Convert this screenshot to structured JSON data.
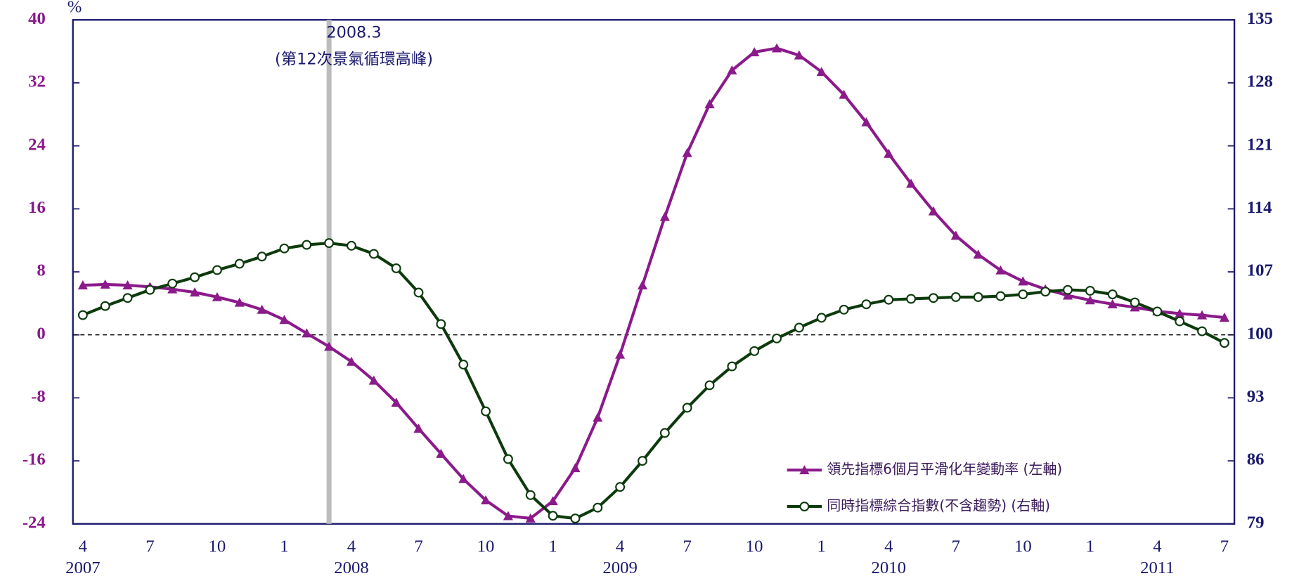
{
  "chart_data": {
    "type": "line",
    "y_label": "%",
    "categories": [
      "4",
      null,
      null,
      "7",
      null,
      null,
      "10",
      null,
      null,
      "1",
      null,
      null,
      "4",
      null,
      null,
      "7",
      null,
      null,
      "10",
      null,
      null,
      "1",
      null,
      null,
      "4",
      null,
      null,
      "7",
      null,
      null,
      "10",
      null,
      null,
      "1",
      null,
      null,
      "4",
      null,
      null,
      "7",
      null,
      null,
      "10",
      null,
      null,
      "1",
      null,
      null,
      "4",
      null,
      null,
      "7"
    ],
    "year_labels": [
      "2007",
      "2008",
      "2009",
      "2010",
      "2011"
    ],
    "ylim": [
      -24,
      40
    ],
    "yticks": [
      -24,
      -16,
      -8,
      0,
      8,
      16,
      24,
      32,
      40
    ],
    "y2lim": [
      79,
      135
    ],
    "y2ticks": [
      79,
      86,
      93,
      100,
      107,
      114,
      121,
      128,
      135
    ],
    "ytick_color": "#8b1a8b",
    "y2tick_color": "#1a1a6e",
    "zero_line": true,
    "legend": "lower right",
    "annotation": {
      "date": "2008.3",
      "text": "(第12次景氣循環高峰)",
      "color": "#bdbdbd"
    },
    "series": [
      {
        "name": "領先指標6個月平滑化年變動率 (左軸)",
        "color": "#8b1a8b",
        "marker": "triangle",
        "values": [
          6.3,
          6.4,
          6.3,
          6.1,
          5.8,
          5.4,
          4.8,
          4.1,
          3.2,
          1.9,
          0.2,
          -1.5,
          -3.4,
          -5.8,
          -8.6,
          -11.9,
          -15.1,
          -18.3,
          -21.0,
          -23.0,
          -23.3,
          -21.1,
          -16.9,
          -10.5,
          -2.5,
          6.3,
          15.0,
          23.1,
          29.3,
          33.6,
          35.9,
          36.4,
          35.5,
          33.4,
          30.5,
          27.0,
          23.0,
          19.2,
          15.7,
          12.6,
          10.2,
          8.2,
          6.8,
          5.8,
          5.0,
          4.4,
          3.9,
          3.5,
          3.0,
          2.7,
          2.5,
          2.2
        ]
      },
      {
        "name": "同時指標綜合指數(不含趨勢) (右軸)",
        "color": "#0d3a0d",
        "marker": "circle",
        "axis": "y2",
        "values": [
          102.2,
          103.2,
          104.1,
          105.0,
          105.7,
          106.4,
          107.2,
          107.9,
          108.7,
          109.6,
          110.0,
          110.2,
          109.9,
          109.0,
          107.4,
          104.7,
          101.2,
          96.7,
          91.5,
          86.2,
          82.2,
          79.9,
          79.6,
          80.8,
          83.1,
          86.0,
          89.1,
          91.9,
          94.4,
          96.5,
          98.2,
          99.6,
          100.8,
          101.9,
          102.8,
          103.4,
          103.9,
          104.0,
          104.1,
          104.2,
          104.2,
          104.3,
          104.5,
          104.8,
          105.0,
          104.9,
          104.5,
          103.6,
          102.6,
          101.5,
          100.4,
          99.1
        ]
      }
    ]
  }
}
